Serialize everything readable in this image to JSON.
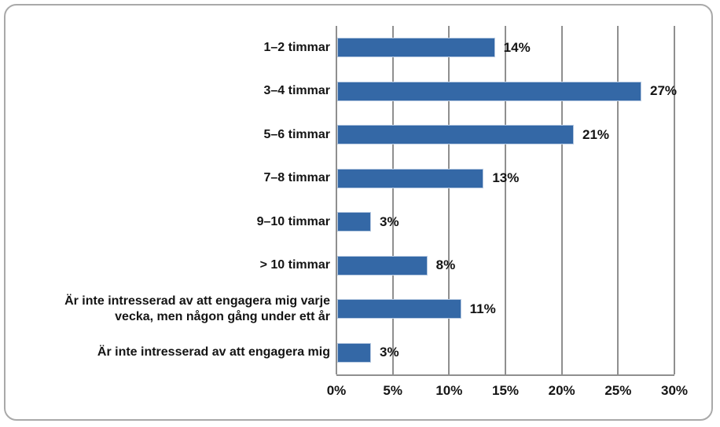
{
  "chart_data": {
    "type": "bar",
    "orientation": "horizontal",
    "title": "",
    "xlabel": "",
    "ylabel": "",
    "categories": [
      "1–2 timmar",
      "3–4 timmar",
      "5–6 timmar",
      "7–8 timmar",
      "9–10 timmar",
      "> 10 timmar",
      "Är inte intresserad av att engagera mig varje\nvecka, men någon gång under ett år",
      "Är inte intresserad av att engagera mig"
    ],
    "values": [
      14,
      27,
      21,
      13,
      3,
      8,
      11,
      3
    ],
    "value_labels": [
      "14%",
      "27%",
      "21%",
      "13%",
      "3%",
      "8%",
      "11%",
      "3%"
    ],
    "x_ticks": [
      "0%",
      "5%",
      "10%",
      "15%",
      "20%",
      "25%",
      "30%"
    ],
    "xlim": [
      0,
      30
    ],
    "grid": "vertical-only",
    "legend": "none",
    "colors": {
      "bar": "#3468a6",
      "bar_edge": "#b9cbe2",
      "gridline": "#8f8f8f",
      "axis_line": "#8f8f8f",
      "frame_border": "#a9a9a9",
      "text": "#141414",
      "background": "#ffffff"
    }
  }
}
